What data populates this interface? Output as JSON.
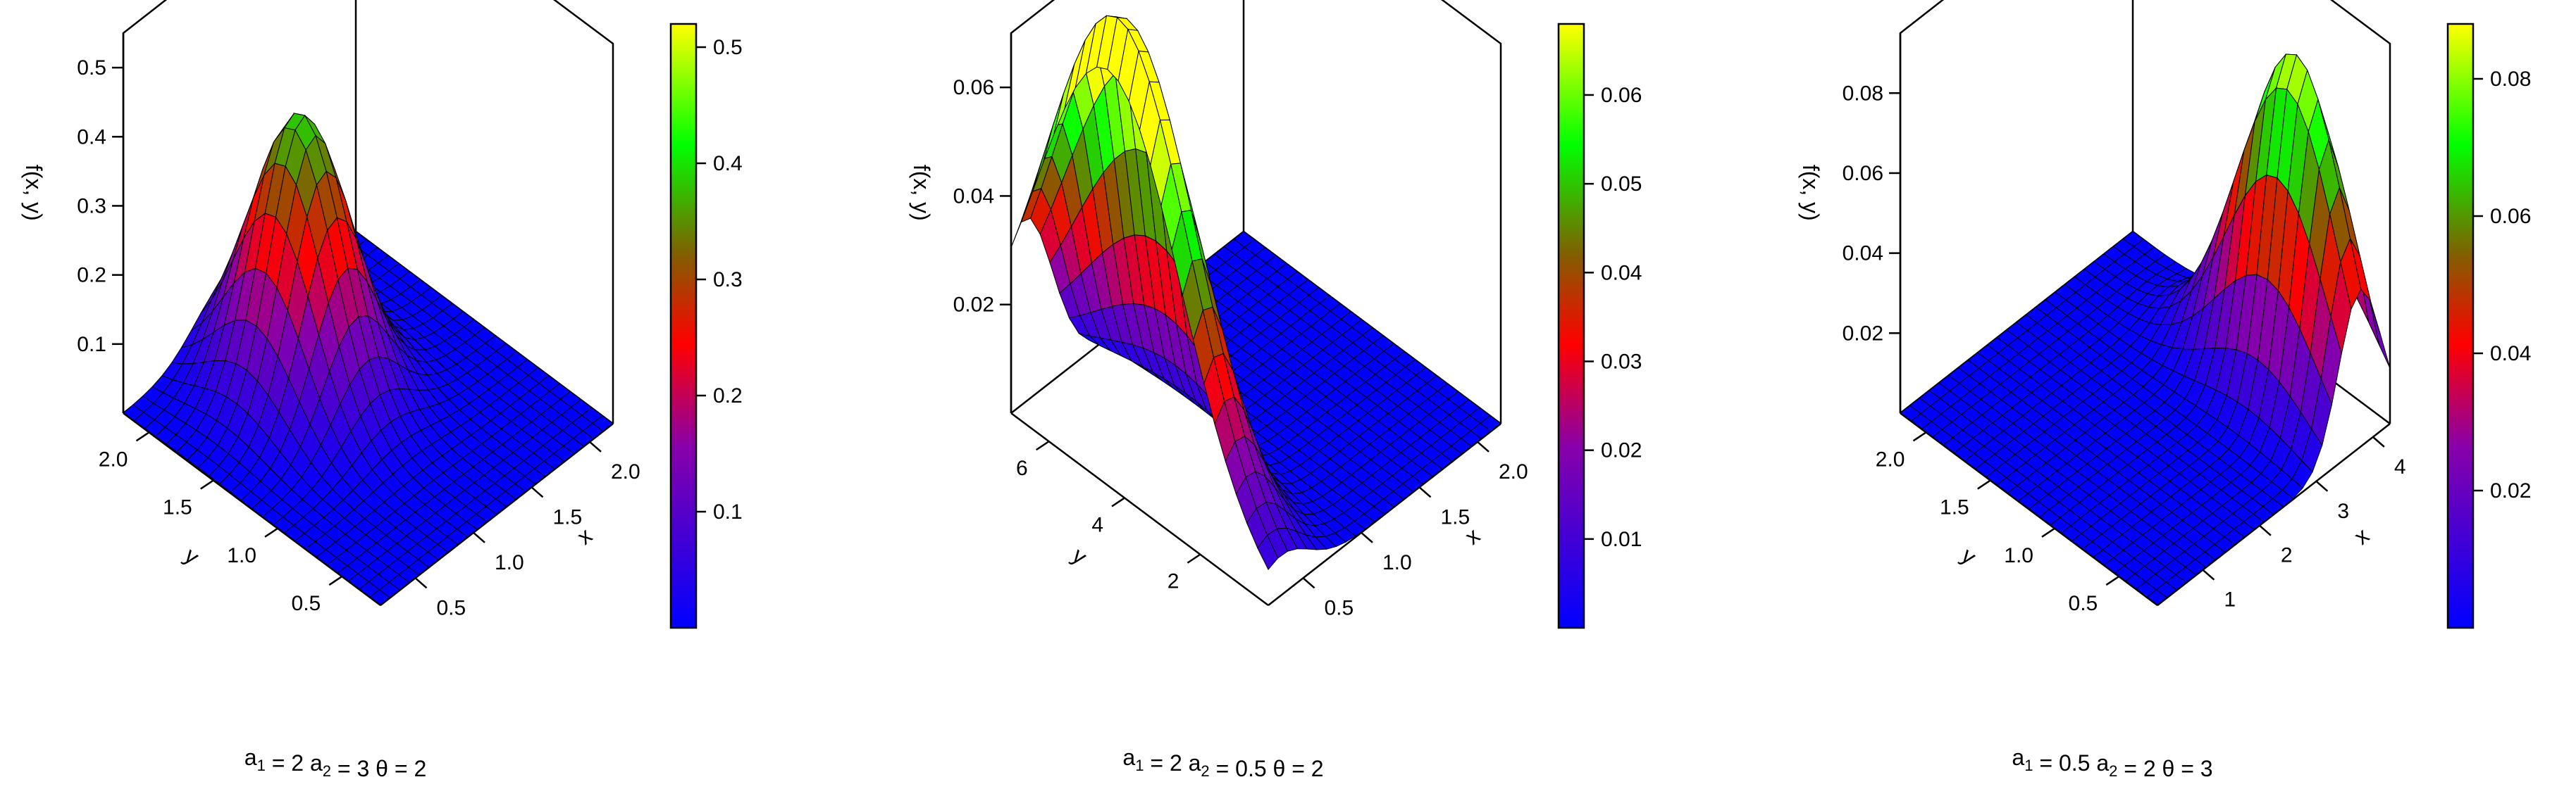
{
  "chart_data": [
    {
      "type": "surface3d",
      "zlabel": "f(x, y)",
      "xlabel": "x",
      "ylabel": "y",
      "xlim": [
        0.2,
        2.2
      ],
      "ylim": [
        0.2,
        2.2
      ],
      "zlim": [
        0,
        0.55
      ],
      "x_ticks": [
        "0.5",
        "1.0",
        "1.5",
        "2.0"
      ],
      "y_ticks": [
        "0.5",
        "1.0",
        "1.5",
        "2.0"
      ],
      "z_ticks": [
        "0.1",
        "0.2",
        "0.3",
        "0.4",
        "0.5"
      ],
      "colorbar": {
        "min": 0,
        "max": 0.52,
        "ticks": [
          "0.1",
          "0.2",
          "0.3",
          "0.4",
          "0.5"
        ]
      },
      "caption": {
        "a1": "2",
        "a2": "3",
        "theta": "2"
      },
      "peak": {
        "x": 1.2,
        "y": 1.6,
        "z": 0.44
      }
    },
    {
      "type": "surface3d",
      "zlabel": "f(x, y)",
      "xlabel": "x",
      "ylabel": "y",
      "xlim": [
        0.2,
        2.2
      ],
      "ylim": [
        0.2,
        7.0
      ],
      "zlim": [
        0,
        0.07
      ],
      "x_ticks": [
        "0.5",
        "1.0",
        "1.5",
        "2.0"
      ],
      "y_ticks": [
        "2",
        "4",
        "6"
      ],
      "z_ticks": [
        "0.02",
        "0.04",
        "0.06"
      ],
      "colorbar": {
        "min": 0,
        "max": 0.068,
        "ticks": [
          "0.01",
          "0.02",
          "0.03",
          "0.04",
          "0.05",
          "0.06"
        ]
      },
      "caption": {
        "a1": "2",
        "a2": "0.5",
        "theta": "2"
      },
      "peak": {
        "x": 0.3,
        "y": 4.5,
        "z": 0.062
      }
    },
    {
      "type": "surface3d",
      "zlabel": "f(x, y)",
      "xlabel": "x",
      "ylabel": "y",
      "xlim": [
        0.2,
        4.3
      ],
      "ylim": [
        0.2,
        2.2
      ],
      "zlim": [
        0,
        0.095
      ],
      "x_ticks": [
        "1",
        "2",
        "3",
        "4"
      ],
      "y_ticks": [
        "0.5",
        "1.0",
        "1.5",
        "2.0"
      ],
      "z_ticks": [
        "0.02",
        "0.04",
        "0.06",
        "0.08"
      ],
      "colorbar": {
        "min": 0,
        "max": 0.088,
        "ticks": [
          "0.02",
          "0.04",
          "0.06",
          "0.08"
        ]
      },
      "caption": {
        "a1": "0.5",
        "a2": "2",
        "theta": "3"
      },
      "peak": {
        "x": 3.8,
        "y": 0.8,
        "z": 0.086
      }
    }
  ]
}
